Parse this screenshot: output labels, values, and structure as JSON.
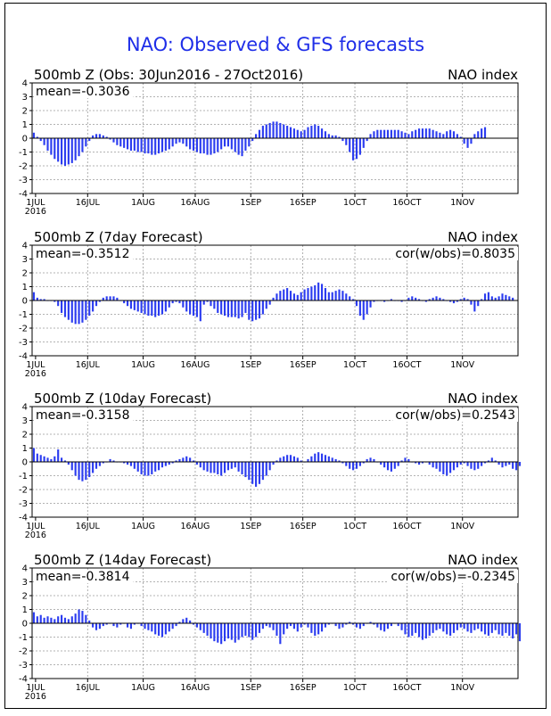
{
  "figure": {
    "title": "NAO: Observed & GFS forecasts",
    "title_color": "#1f2ee8",
    "bar_color": "#2b3cf0"
  },
  "chart_data": [
    {
      "type": "bar",
      "title": "500mb Z (Obs: 30Jun2016 - 27Oct2016)",
      "right_title": "NAO index",
      "mean_label": "mean=-0.3036",
      "cor_label": "",
      "ylim": [
        -4,
        4
      ],
      "yticks": [
        "4",
        "3",
        "2",
        "1",
        "0",
        "-1",
        "-2",
        "-3",
        "-4"
      ],
      "xlim_days": [
        0,
        140
      ],
      "xticks": [
        "1JUL",
        "16JUL",
        "1AUG",
        "16AUG",
        "1SEP",
        "16SEP",
        "1OCT",
        "16OCT",
        "1NOV"
      ],
      "year_label": "2016",
      "grid": true,
      "values": [
        0.4,
        0.1,
        -0.2,
        -0.5,
        -0.9,
        -1.2,
        -1.5,
        -1.7,
        -1.9,
        -2.0,
        -1.9,
        -1.8,
        -1.6,
        -1.3,
        -1.0,
        -0.6,
        -0.2,
        0.2,
        0.3,
        0.3,
        0.2,
        0.1,
        -0.1,
        -0.3,
        -0.5,
        -0.6,
        -0.7,
        -0.8,
        -0.9,
        -0.9,
        -1.0,
        -1.0,
        -1.1,
        -1.1,
        -1.2,
        -1.2,
        -1.1,
        -1.0,
        -0.9,
        -0.8,
        -0.6,
        -0.4,
        -0.3,
        -0.4,
        -0.6,
        -0.8,
        -0.9,
        -1.0,
        -1.1,
        -1.1,
        -1.2,
        -1.2,
        -1.1,
        -1.0,
        -0.8,
        -0.6,
        -0.6,
        -0.8,
        -1.0,
        -1.2,
        -1.3,
        -0.9,
        -0.6,
        -0.2,
        0.3,
        0.6,
        0.9,
        1.0,
        1.1,
        1.2,
        1.2,
        1.1,
        1.0,
        0.9,
        0.8,
        0.7,
        0.6,
        0.5,
        0.6,
        0.8,
        0.9,
        1.0,
        0.9,
        0.7,
        0.5,
        0.3,
        0.2,
        0.2,
        0.1,
        -0.2,
        -0.5,
        -1.0,
        -1.6,
        -1.5,
        -1.2,
        -0.7,
        -0.2,
        0.3,
        0.5,
        0.6,
        0.6,
        0.6,
        0.6,
        0.6,
        0.6,
        0.6,
        0.5,
        0.4,
        0.3,
        0.5,
        0.6,
        0.7,
        0.7,
        0.7,
        0.7,
        0.6,
        0.5,
        0.4,
        0.3,
        0.5,
        0.6,
        0.5,
        0.3,
        0.1,
        -0.4,
        -0.7,
        -0.4,
        0.3,
        0.5,
        0.7,
        0.8
      ]
    },
    {
      "type": "bar",
      "title": "500mb Z (7day Forecast)",
      "right_title": "NAO index",
      "mean_label": "mean=-0.3512",
      "cor_label": "cor(w/obs)=0.8035",
      "ylim": [
        -4,
        4
      ],
      "yticks": [
        "4",
        "3",
        "2",
        "1",
        "0",
        "-1",
        "-2",
        "-3",
        "-4"
      ],
      "xlim_days": [
        0,
        140
      ],
      "xticks": [
        "1JUL",
        "16JUL",
        "1AUG",
        "16AUG",
        "1SEP",
        "16SEP",
        "1OCT",
        "16OCT",
        "1NOV"
      ],
      "year_label": "2016",
      "grid": true,
      "values": [
        0.6,
        0.2,
        0.1,
        0.1,
        0.0,
        0.0,
        -0.1,
        -0.4,
        -0.9,
        -1.2,
        -1.4,
        -1.6,
        -1.7,
        -1.7,
        -1.6,
        -1.4,
        -1.1,
        -0.8,
        -0.4,
        -0.1,
        0.2,
        0.3,
        0.3,
        0.3,
        0.2,
        0.0,
        -0.2,
        -0.4,
        -0.6,
        -0.7,
        -0.8,
        -0.9,
        -1.0,
        -1.1,
        -1.1,
        -1.2,
        -1.1,
        -1.0,
        -0.8,
        -0.5,
        -0.2,
        -0.1,
        -0.2,
        -0.5,
        -0.8,
        -1.0,
        -1.1,
        -1.2,
        -1.5,
        -0.3,
        -0.1,
        -0.4,
        -0.6,
        -0.9,
        -1.0,
        -1.1,
        -1.2,
        -1.2,
        -1.2,
        -1.3,
        -1.2,
        -0.9,
        -1.4,
        -1.5,
        -1.4,
        -1.3,
        -1.0,
        -0.6,
        -0.3,
        0.2,
        0.5,
        0.7,
        0.8,
        0.9,
        0.7,
        0.5,
        0.4,
        0.6,
        0.8,
        0.9,
        1.0,
        1.1,
        1.3,
        1.2,
        0.9,
        0.6,
        0.6,
        0.7,
        0.8,
        0.7,
        0.5,
        0.3,
        0.1,
        -0.4,
        -1.1,
        -1.4,
        -1.0,
        -0.5,
        -0.1,
        0.0,
        0.0,
        -0.1,
        0.0,
        0.1,
        0.0,
        0.0,
        -0.1,
        0.0,
        0.2,
        0.3,
        0.2,
        0.1,
        0.0,
        -0.1,
        0.1,
        0.2,
        0.3,
        0.2,
        0.1,
        0.0,
        -0.1,
        -0.2,
        -0.1,
        0.1,
        0.2,
        0.1,
        -0.3,
        -0.8,
        -0.4,
        0.1,
        0.5,
        0.6,
        0.3,
        0.2,
        0.3,
        0.5,
        0.4,
        0.3,
        0.2
      ]
    },
    {
      "type": "bar",
      "title": "500mb Z (10day Forecast)",
      "right_title": "NAO index",
      "mean_label": "mean=-0.3158",
      "cor_label": "cor(w/obs)=0.2543",
      "ylim": [
        -4,
        4
      ],
      "yticks": [
        "4",
        "3",
        "2",
        "1",
        "0",
        "-1",
        "-2",
        "-3",
        "-4"
      ],
      "xlim_days": [
        0,
        140
      ],
      "xticks": [
        "1JUL",
        "16JUL",
        "1AUG",
        "16AUG",
        "1SEP",
        "16SEP",
        "1OCT",
        "16OCT",
        "1NOV"
      ],
      "year_label": "2016",
      "grid": true,
      "values": [
        1.0,
        0.6,
        0.5,
        0.4,
        0.3,
        0.2,
        0.4,
        0.9,
        0.3,
        0.1,
        -0.2,
        -0.6,
        -1.0,
        -1.3,
        -1.4,
        -1.3,
        -1.1,
        -0.8,
        -0.5,
        -0.3,
        -0.1,
        0.0,
        0.2,
        0.1,
        0.0,
        0.0,
        -0.1,
        -0.2,
        -0.3,
        -0.5,
        -0.7,
        -0.9,
        -1.0,
        -1.0,
        -0.9,
        -0.7,
        -0.6,
        -0.4,
        -0.3,
        -0.2,
        -0.1,
        0.1,
        0.2,
        0.3,
        0.4,
        0.3,
        0.1,
        -0.2,
        -0.4,
        -0.6,
        -0.7,
        -0.8,
        -0.8,
        -0.9,
        -1.0,
        -0.8,
        -0.6,
        -0.5,
        -0.4,
        -0.7,
        -0.9,
        -1.1,
        -1.3,
        -1.6,
        -1.8,
        -1.6,
        -1.3,
        -1.0,
        -0.6,
        -0.2,
        0.1,
        0.3,
        0.4,
        0.5,
        0.5,
        0.4,
        0.3,
        0.1,
        0.0,
        0.2,
        0.4,
        0.6,
        0.7,
        0.6,
        0.5,
        0.4,
        0.3,
        0.2,
        0.1,
        -0.1,
        -0.3,
        -0.5,
        -0.6,
        -0.5,
        -0.3,
        -0.1,
        0.2,
        0.3,
        0.2,
        0.0,
        -0.2,
        -0.4,
        -0.6,
        -0.7,
        -0.5,
        -0.3,
        0.1,
        0.3,
        0.2,
        0.0,
        -0.1,
        -0.2,
        -0.1,
        0.0,
        -0.2,
        -0.4,
        -0.5,
        -0.7,
        -0.9,
        -1.0,
        -0.8,
        -0.6,
        -0.4,
        -0.2,
        -0.1,
        -0.3,
        -0.5,
        -0.6,
        -0.5,
        -0.3,
        -0.1,
        0.1,
        0.3,
        0.1,
        -0.2,
        -0.4,
        -0.3,
        -0.2,
        -0.5,
        -0.6,
        -0.3
      ]
    },
    {
      "type": "bar",
      "title": "500mb Z (14day Forecast)",
      "right_title": "NAO index",
      "mean_label": "mean=-0.3814",
      "cor_label": "cor(w/obs)=-0.2345",
      "ylim": [
        -4,
        4
      ],
      "yticks": [
        "4",
        "3",
        "2",
        "1",
        "0",
        "-1",
        "-2",
        "-3",
        "-4"
      ],
      "xlim_days": [
        0,
        140
      ],
      "xticks": [
        "1JUL",
        "16JUL",
        "1AUG",
        "16AUG",
        "1SEP",
        "16SEP",
        "1OCT",
        "16OCT",
        "1NOV"
      ],
      "year_label": "2016",
      "grid": true,
      "values": [
        0.8,
        0.5,
        0.6,
        0.4,
        0.5,
        0.4,
        0.3,
        0.5,
        0.6,
        0.4,
        0.3,
        0.5,
        0.7,
        1.0,
        0.9,
        0.6,
        0.2,
        -0.3,
        -0.5,
        -0.4,
        -0.2,
        -0.1,
        0.0,
        -0.2,
        -0.3,
        -0.1,
        0.0,
        -0.3,
        -0.4,
        -0.1,
        0.0,
        -0.2,
        -0.4,
        -0.5,
        -0.6,
        -0.8,
        -0.9,
        -1.0,
        -0.8,
        -0.6,
        -0.4,
        -0.2,
        0.1,
        0.3,
        0.4,
        0.2,
        -0.1,
        -0.3,
        -0.5,
        -0.7,
        -0.9,
        -1.1,
        -1.3,
        -1.4,
        -1.5,
        -1.3,
        -1.1,
        -1.2,
        -1.4,
        -1.2,
        -1.0,
        -0.9,
        -1.0,
        -1.2,
        -1.0,
        -0.7,
        -0.4,
        -0.2,
        -0.3,
        -0.5,
        -0.9,
        -1.5,
        -0.8,
        -0.4,
        -0.2,
        -0.4,
        -0.6,
        -0.3,
        -0.1,
        -0.3,
        -0.7,
        -0.9,
        -0.8,
        -0.6,
        -0.3,
        -0.1,
        0.0,
        -0.2,
        -0.4,
        -0.3,
        -0.1,
        0.1,
        -0.1,
        -0.3,
        -0.4,
        -0.2,
        0.0,
        0.1,
        -0.1,
        -0.3,
        -0.5,
        -0.6,
        -0.4,
        -0.2,
        0.0,
        -0.2,
        -0.5,
        -0.8,
        -1.0,
        -0.9,
        -0.7,
        -1.0,
        -1.2,
        -1.1,
        -0.9,
        -0.7,
        -0.5,
        -0.4,
        -0.6,
        -0.8,
        -0.9,
        -0.7,
        -0.5,
        -0.3,
        -0.4,
        -0.6,
        -0.7,
        -0.5,
        -0.4,
        -0.6,
        -0.8,
        -0.9,
        -0.7,
        -0.5,
        -0.8,
        -0.9,
        -0.7,
        -0.9,
        -1.1,
        -0.8,
        -1.3
      ]
    }
  ]
}
